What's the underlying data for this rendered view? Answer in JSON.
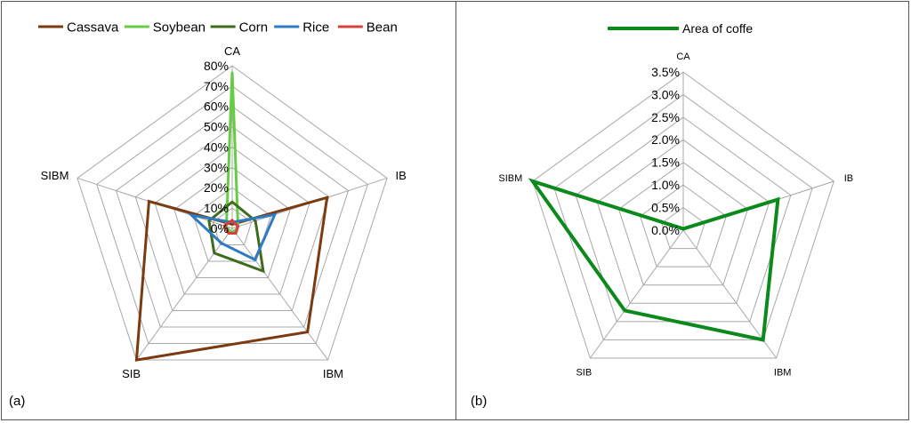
{
  "chart_data": [
    {
      "type": "radar",
      "panel_label": "(a)",
      "axes": [
        "CA",
        "IB",
        "IBM",
        "SIB",
        "SIBM"
      ],
      "ticks": [
        "0%",
        "10%",
        "20%",
        "30%",
        "40%",
        "50%",
        "60%",
        "70%",
        "80%"
      ],
      "rmax": 80,
      "legend_position": "top",
      "series": [
        {
          "name": "Cassava",
          "color": "#7B3A10",
          "values": [
            2,
            49,
            63,
            80,
            43
          ]
        },
        {
          "name": "Soybean",
          "color": "#66CC44",
          "values": [
            77,
            3,
            2,
            2,
            3
          ]
        },
        {
          "name": "Corn",
          "color": "#3E6B1E",
          "values": [
            13,
            12,
            26,
            15,
            12
          ]
        },
        {
          "name": "Rice",
          "color": "#2E7BC4",
          "values": [
            3,
            22,
            19,
            9,
            21
          ]
        },
        {
          "name": "Bean",
          "color": "#D9403A",
          "values": [
            4,
            3,
            3,
            3,
            4
          ]
        }
      ]
    },
    {
      "type": "radar",
      "panel_label": "(b)",
      "axes": [
        "CA",
        "IB",
        "IBM",
        "SIB",
        "SIBM"
      ],
      "ticks": [
        "0.0%",
        "0.5%",
        "1.0%",
        "1.5%",
        "2.0%",
        "2.5%",
        "3.0%",
        "3.5%"
      ],
      "rmax": 3.5,
      "legend_position": "top",
      "series": [
        {
          "name": "Area of coffe",
          "color": "#0A8A1A",
          "values": [
            0.03,
            2.2,
            3.0,
            2.2,
            3.5
          ]
        }
      ]
    }
  ]
}
